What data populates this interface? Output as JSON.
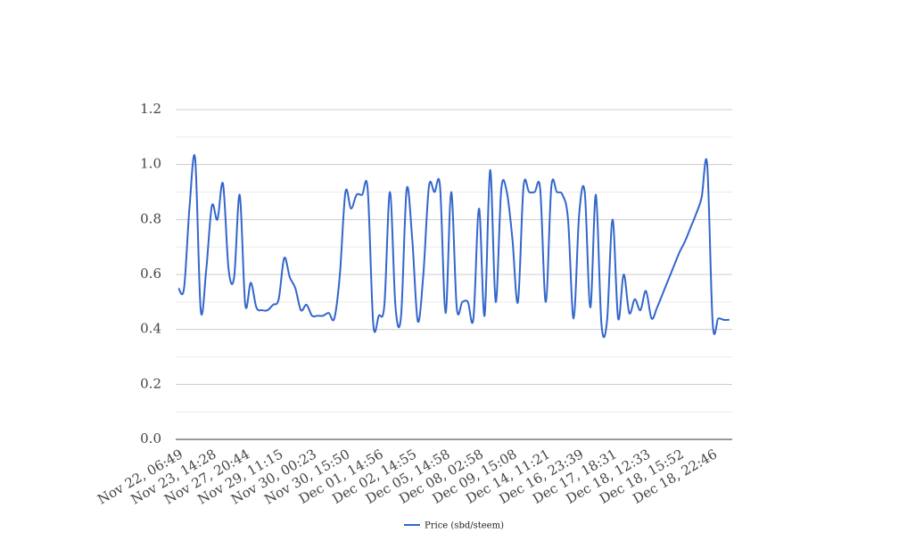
{
  "chart_data": {
    "type": "line",
    "categories": [
      "Nov 22, 06:49",
      null,
      null,
      null,
      null,
      null,
      "Nov 23, 14:28",
      null,
      null,
      null,
      null,
      null,
      "Nov 27, 20:44",
      null,
      null,
      null,
      null,
      null,
      "Nov 29, 11:15",
      null,
      null,
      null,
      null,
      null,
      "Nov 30, 00:23",
      null,
      null,
      null,
      null,
      null,
      "Nov 30, 15:50",
      null,
      null,
      null,
      null,
      null,
      "Dec 01, 14:56",
      null,
      null,
      null,
      null,
      null,
      "Dec 02, 14:55",
      null,
      null,
      null,
      null,
      null,
      "Dec 05, 14:58",
      null,
      null,
      null,
      null,
      null,
      "Dec 08, 02:58",
      null,
      null,
      null,
      null,
      null,
      "Dec 09, 15:08",
      null,
      null,
      null,
      null,
      null,
      "Dec 14, 11:21",
      null,
      null,
      null,
      null,
      null,
      "Dec 16, 23:39",
      null,
      null,
      null,
      null,
      null,
      "Dec 17, 18:31",
      null,
      null,
      null,
      null,
      null,
      "Dec 18, 12:33",
      null,
      null,
      null,
      null,
      null,
      "Dec 18, 15:52",
      null,
      null,
      null,
      null,
      null,
      "Dec 18, 22:46",
      null,
      null,
      null
    ],
    "series": [
      {
        "name": "Price (sbd/steem)",
        "color": "#3366cc",
        "values": [
          0.55,
          0.55,
          0.85,
          1.02,
          0.47,
          0.62,
          0.85,
          0.8,
          0.93,
          0.62,
          0.59,
          0.89,
          0.49,
          0.57,
          0.48,
          0.47,
          0.47,
          0.49,
          0.51,
          0.66,
          0.59,
          0.55,
          0.47,
          0.49,
          0.45,
          0.45,
          0.45,
          0.46,
          0.44,
          0.6,
          0.9,
          0.84,
          0.89,
          0.89,
          0.91,
          0.42,
          0.45,
          0.49,
          0.9,
          0.48,
          0.45,
          0.91,
          0.73,
          0.43,
          0.6,
          0.92,
          0.9,
          0.92,
          0.46,
          0.9,
          0.48,
          0.5,
          0.5,
          0.44,
          0.84,
          0.45,
          0.98,
          0.5,
          0.91,
          0.9,
          0.73,
          0.5,
          0.92,
          0.9,
          0.9,
          0.91,
          0.5,
          0.92,
          0.9,
          0.89,
          0.8,
          0.44,
          0.82,
          0.9,
          0.48,
          0.89,
          0.42,
          0.43,
          0.8,
          0.44,
          0.6,
          0.46,
          0.51,
          0.47,
          0.54,
          0.44,
          0.48,
          0.53,
          0.58,
          0.63,
          0.68,
          0.72,
          0.77,
          0.82,
          0.88,
          1.0,
          0.42,
          0.44,
          0.435,
          0.435
        ]
      }
    ],
    "ylim": [
      0,
      1.2
    ],
    "yticks": [
      {
        "value": 0,
        "label": "0.0"
      },
      0.2,
      0.4,
      0.6,
      0.8,
      {
        "value": 1,
        "label": "1.0"
      },
      1.2
    ],
    "grid": true,
    "minor_grid": true,
    "legend": "bottom"
  }
}
